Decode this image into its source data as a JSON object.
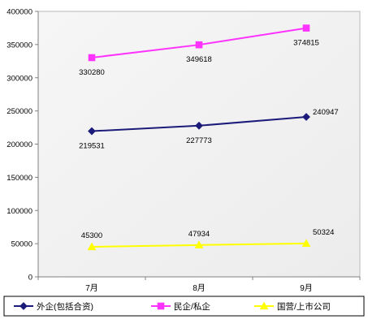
{
  "chart_data": {
    "type": "line",
    "categories": [
      "7月",
      "8月",
      "9月"
    ],
    "series": [
      {
        "name": "外企(包括合资)",
        "values": [
          219531,
          227773,
          240947
        ],
        "labels": [
          "219531",
          "227773",
          "240947"
        ],
        "color": "#1b1b7a",
        "marker": "diamond"
      },
      {
        "name": "民企/私企",
        "values": [
          330280,
          349618,
          374815
        ],
        "labels": [
          "330280",
          "349618",
          "374815"
        ],
        "color": "#ff33ff",
        "marker": "square"
      },
      {
        "name": "国营/上市公司",
        "values": [
          45300,
          47934,
          50324
        ],
        "labels": [
          "45300",
          "47934",
          "50324"
        ],
        "color": "#ffff00",
        "marker": "triangle"
      }
    ],
    "yticks": [
      0,
      50000,
      100000,
      150000,
      200000,
      250000,
      300000,
      350000,
      400000
    ],
    "ytick_labels": [
      "0",
      "50000",
      "100000",
      "150000",
      "200000",
      "250000",
      "300000",
      "350000",
      "400000"
    ],
    "ylim": [
      0,
      400000
    ],
    "grid": false,
    "legend_position": "bottom"
  }
}
